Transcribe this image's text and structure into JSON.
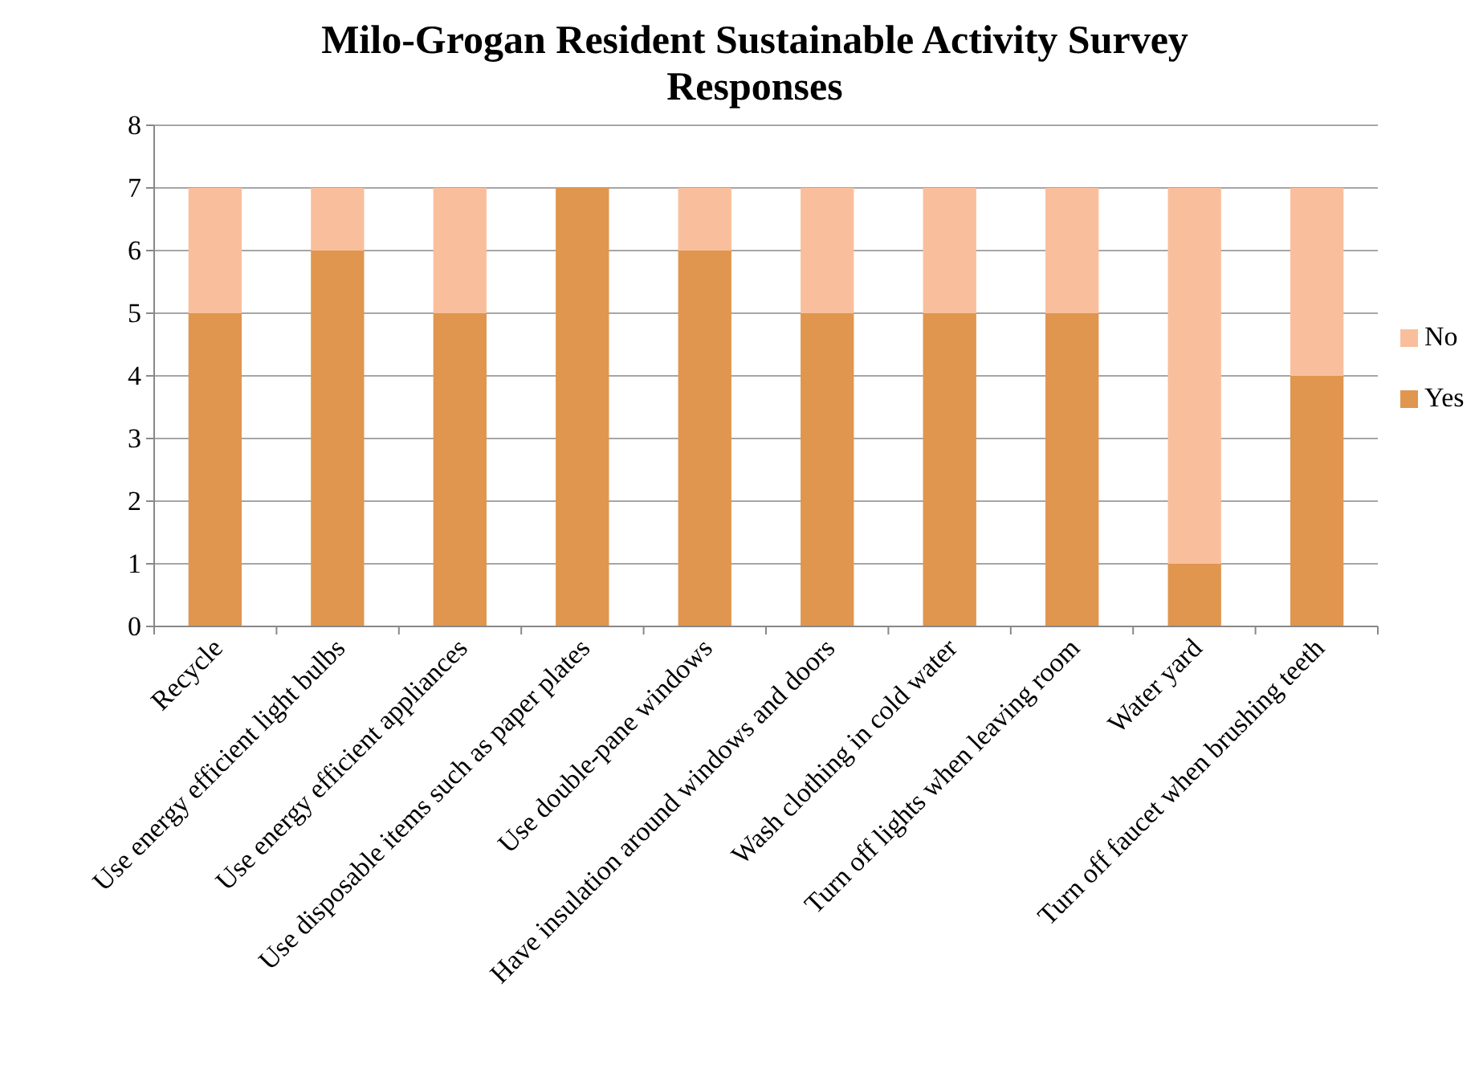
{
  "chart_data": {
    "type": "bar",
    "title": "Milo-Grogan Resident Sustainable Activity Survey Responses",
    "categories": [
      "Recycle",
      "Use energy efficient light bulbs",
      "Use energy efficient appliances",
      "Use disposable items such as paper plates",
      "Use double-pane windows",
      "Have insulation around windows and doors",
      "Wash clothing in cold water",
      "Turn off lights when leaving room",
      "Water yard",
      "Turn off faucet when brushing teeth"
    ],
    "series": [
      {
        "name": "Yes",
        "color": "#e0964e",
        "values": [
          5,
          6,
          5,
          7,
          6,
          5,
          5,
          5,
          1,
          4
        ]
      },
      {
        "name": "No",
        "color": "#f9bf9c",
        "values": [
          2,
          1,
          2,
          0,
          1,
          2,
          2,
          2,
          6,
          3
        ]
      }
    ],
    "stacked": true,
    "ylim": [
      0,
      8
    ],
    "yticks": [
      0,
      1,
      2,
      3,
      4,
      5,
      6,
      7,
      8
    ],
    "grid": "y",
    "legend": "right"
  }
}
